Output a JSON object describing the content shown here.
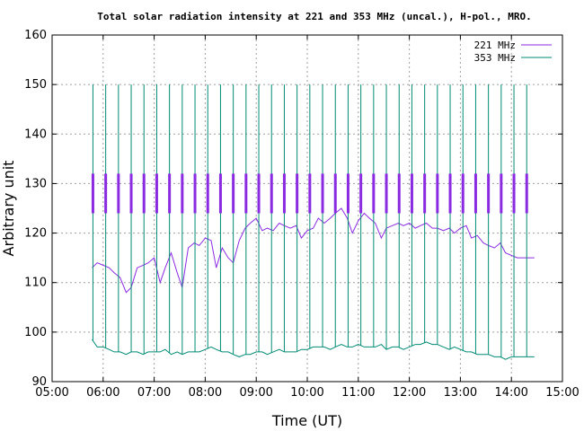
{
  "chart_data": {
    "type": "line",
    "title": "Total solar radiation intensity at 221 and 353 MHz (uncal.), H-pol., MRO.",
    "xlabel": "Time (UT)",
    "ylabel": "Arbitrary unit",
    "xlim": [
      "05:00",
      "15:00"
    ],
    "ylim": [
      90,
      160
    ],
    "xticks": [
      "05:00",
      "06:00",
      "07:00",
      "08:00",
      "09:00",
      "10:00",
      "11:00",
      "12:00",
      "13:00",
      "14:00",
      "15:00"
    ],
    "yticks": [
      "90",
      "100",
      "110",
      "120",
      "130",
      "140",
      "150",
      "160"
    ],
    "grid": true,
    "legend_position": "top-right",
    "series": [
      {
        "name": "221 MHz",
        "color": "#8a2be2",
        "x": [
          "05:47",
          "05:53",
          "06:00",
          "06:07",
          "06:13",
          "06:20",
          "06:27",
          "06:33",
          "06:40",
          "06:47",
          "06:53",
          "07:00",
          "07:07",
          "07:13",
          "07:20",
          "07:27",
          "07:33",
          "07:40",
          "07:47",
          "07:53",
          "08:00",
          "08:07",
          "08:13",
          "08:20",
          "08:27",
          "08:33",
          "08:40",
          "08:47",
          "08:53",
          "09:00",
          "09:07",
          "09:13",
          "09:20",
          "09:27",
          "09:33",
          "09:40",
          "09:47",
          "09:53",
          "10:00",
          "10:07",
          "10:13",
          "10:20",
          "10:27",
          "10:33",
          "10:40",
          "10:47",
          "10:53",
          "11:00",
          "11:07",
          "11:13",
          "11:20",
          "11:27",
          "11:33",
          "11:40",
          "11:47",
          "11:53",
          "12:00",
          "12:07",
          "12:13",
          "12:20",
          "12:27",
          "12:33",
          "12:40",
          "12:47",
          "12:53",
          "13:00",
          "13:07",
          "13:13",
          "13:20",
          "13:27",
          "13:33",
          "13:40",
          "13:47",
          "13:53",
          "14:00",
          "14:07",
          "14:13",
          "14:20",
          "14:27"
        ],
        "values": [
          113,
          114,
          113.5,
          113,
          112,
          111,
          108,
          109,
          113,
          113.5,
          114,
          115,
          110,
          113,
          116,
          112,
          109,
          117,
          118,
          117.5,
          119,
          118.5,
          113,
          117,
          115,
          114,
          118.5,
          121,
          122,
          123,
          120.5,
          121,
          120.5,
          122,
          121.5,
          121,
          121.5,
          119,
          120.5,
          121,
          123,
          122,
          123,
          124,
          125,
          123,
          120,
          122.5,
          124,
          123,
          122,
          119,
          121,
          121.5,
          122,
          121.5,
          122,
          121,
          121.5,
          122,
          121,
          121,
          120.5,
          121,
          120,
          121,
          121.5,
          119,
          119.5,
          118,
          117.5,
          117,
          118,
          116,
          115.5,
          115,
          115,
          115,
          115
        ]
      },
      {
        "name": "353 MHz",
        "color": "#008b74",
        "x": [
          "05:47",
          "05:53",
          "06:00",
          "06:07",
          "06:13",
          "06:20",
          "06:27",
          "06:33",
          "06:40",
          "06:47",
          "06:53",
          "07:00",
          "07:07",
          "07:13",
          "07:20",
          "07:27",
          "07:33",
          "07:40",
          "07:47",
          "07:53",
          "08:00",
          "08:07",
          "08:13",
          "08:20",
          "08:27",
          "08:33",
          "08:40",
          "08:47",
          "08:53",
          "09:00",
          "09:07",
          "09:13",
          "09:20",
          "09:27",
          "09:33",
          "09:40",
          "09:47",
          "09:53",
          "10:00",
          "10:07",
          "10:13",
          "10:20",
          "10:27",
          "10:33",
          "10:40",
          "10:47",
          "10:53",
          "11:00",
          "11:07",
          "11:13",
          "11:20",
          "11:27",
          "11:33",
          "11:40",
          "11:47",
          "11:53",
          "12:00",
          "12:07",
          "12:13",
          "12:20",
          "12:27",
          "12:33",
          "12:40",
          "12:47",
          "12:53",
          "13:00",
          "13:07",
          "13:13",
          "13:20",
          "13:27",
          "13:33",
          "13:40",
          "13:47",
          "13:53",
          "14:00",
          "14:07",
          "14:13",
          "14:20",
          "14:27"
        ],
        "values": [
          98.5,
          97,
          97,
          96.5,
          96,
          96,
          95.5,
          96,
          96,
          95.5,
          96,
          96,
          96,
          96.5,
          95.5,
          96,
          95.5,
          96,
          96,
          96,
          96.5,
          97,
          96.5,
          96,
          96,
          95.5,
          95,
          95.5,
          95.5,
          96,
          96,
          95.5,
          96,
          96.5,
          96,
          96,
          96,
          96.5,
          96.5,
          97,
          97,
          97,
          96.5,
          97,
          97.5,
          97,
          97,
          97.5,
          97,
          97,
          97,
          97.5,
          96.5,
          97,
          97,
          96.5,
          97,
          97.5,
          97.5,
          98,
          97.5,
          97.5,
          97,
          96.5,
          97,
          96.5,
          96,
          96,
          95.5,
          95.5,
          95.5,
          95,
          95,
          94.5,
          95,
          95,
          95,
          95,
          95
        ]
      }
    ],
    "calibration_spikes": {
      "times": [
        "05:48",
        "06:03",
        "06:18",
        "06:33",
        "06:48",
        "07:03",
        "07:18",
        "07:33",
        "07:48",
        "08:03",
        "08:18",
        "08:33",
        "08:48",
        "09:03",
        "09:18",
        "09:33",
        "09:48",
        "10:03",
        "10:18",
        "10:33",
        "10:48",
        "11:03",
        "11:18",
        "11:33",
        "11:48",
        "12:03",
        "12:18",
        "12:33",
        "12:48",
        "13:03",
        "13:18",
        "13:33",
        "13:48",
        "14:03",
        "14:18"
      ],
      "221_low": 124,
      "221_high": 132,
      "353_high": 150
    }
  }
}
